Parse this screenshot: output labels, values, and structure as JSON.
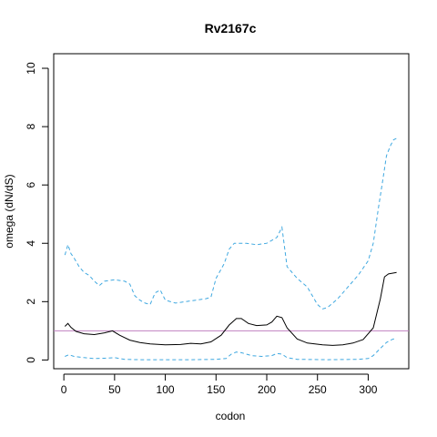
{
  "chart_data": {
    "type": "line",
    "title": "Rv2167c",
    "xlabel": "codon",
    "ylabel": "omega (dN/dS)",
    "xlim": [
      -10,
      340
    ],
    "ylim": [
      -0.3,
      10.5
    ],
    "x_ticks": [
      0,
      50,
      100,
      150,
      200,
      250,
      300
    ],
    "y_ticks": [
      0,
      2,
      4,
      6,
      8,
      10
    ],
    "reference_line": {
      "y": 1,
      "color": "#c080c0"
    },
    "series": [
      {
        "role": "estimate",
        "color": "#000000",
        "dash": "solid",
        "points": [
          [
            1,
            1.15
          ],
          [
            4,
            1.25
          ],
          [
            7,
            1.12
          ],
          [
            12,
            0.98
          ],
          [
            20,
            0.9
          ],
          [
            30,
            0.87
          ],
          [
            40,
            0.93
          ],
          [
            48,
            1.0
          ],
          [
            55,
            0.85
          ],
          [
            65,
            0.68
          ],
          [
            75,
            0.6
          ],
          [
            85,
            0.55
          ],
          [
            100,
            0.52
          ],
          [
            115,
            0.53
          ],
          [
            125,
            0.57
          ],
          [
            135,
            0.55
          ],
          [
            145,
            0.62
          ],
          [
            155,
            0.85
          ],
          [
            163,
            1.2
          ],
          [
            170,
            1.42
          ],
          [
            175,
            1.42
          ],
          [
            182,
            1.25
          ],
          [
            190,
            1.18
          ],
          [
            200,
            1.2
          ],
          [
            205,
            1.3
          ],
          [
            210,
            1.5
          ],
          [
            215,
            1.45
          ],
          [
            220,
            1.1
          ],
          [
            230,
            0.72
          ],
          [
            240,
            0.58
          ],
          [
            255,
            0.52
          ],
          [
            265,
            0.5
          ],
          [
            275,
            0.52
          ],
          [
            285,
            0.58
          ],
          [
            295,
            0.7
          ],
          [
            305,
            1.1
          ],
          [
            312,
            2.1
          ],
          [
            316,
            2.85
          ],
          [
            320,
            2.95
          ],
          [
            325,
            2.98
          ],
          [
            328,
            3.0
          ]
        ]
      },
      {
        "role": "upper",
        "color": "#3fa8e0",
        "dash": "dashed",
        "points": [
          [
            1,
            3.6
          ],
          [
            4,
            3.95
          ],
          [
            7,
            3.65
          ],
          [
            10,
            3.5
          ],
          [
            15,
            3.2
          ],
          [
            20,
            3.0
          ],
          [
            25,
            2.9
          ],
          [
            30,
            2.7
          ],
          [
            35,
            2.55
          ],
          [
            40,
            2.7
          ],
          [
            50,
            2.75
          ],
          [
            60,
            2.7
          ],
          [
            65,
            2.6
          ],
          [
            70,
            2.2
          ],
          [
            75,
            2.05
          ],
          [
            80,
            1.95
          ],
          [
            85,
            1.9
          ],
          [
            90,
            2.3
          ],
          [
            95,
            2.4
          ],
          [
            100,
            2.05
          ],
          [
            110,
            1.95
          ],
          [
            120,
            2.0
          ],
          [
            130,
            2.05
          ],
          [
            140,
            2.1
          ],
          [
            145,
            2.15
          ],
          [
            150,
            2.8
          ],
          [
            158,
            3.3
          ],
          [
            163,
            3.8
          ],
          [
            168,
            4.0
          ],
          [
            180,
            4.0
          ],
          [
            190,
            3.95
          ],
          [
            200,
            4.0
          ],
          [
            210,
            4.2
          ],
          [
            215,
            4.55
          ],
          [
            220,
            3.2
          ],
          [
            230,
            2.8
          ],
          [
            240,
            2.5
          ],
          [
            245,
            2.2
          ],
          [
            250,
            1.9
          ],
          [
            255,
            1.75
          ],
          [
            260,
            1.8
          ],
          [
            270,
            2.1
          ],
          [
            280,
            2.5
          ],
          [
            290,
            2.9
          ],
          [
            300,
            3.4
          ],
          [
            305,
            4.0
          ],
          [
            310,
            5.2
          ],
          [
            315,
            6.3
          ],
          [
            318,
            7.0
          ],
          [
            322,
            7.35
          ],
          [
            325,
            7.55
          ],
          [
            328,
            7.6
          ]
        ]
      },
      {
        "role": "lower",
        "color": "#3fa8e0",
        "dash": "dashed",
        "points": [
          [
            1,
            0.12
          ],
          [
            5,
            0.18
          ],
          [
            10,
            0.12
          ],
          [
            20,
            0.08
          ],
          [
            30,
            0.05
          ],
          [
            40,
            0.06
          ],
          [
            50,
            0.08
          ],
          [
            55,
            0.05
          ],
          [
            60,
            0.02
          ],
          [
            75,
            0.01
          ],
          [
            100,
            0.01
          ],
          [
            125,
            0.01
          ],
          [
            150,
            0.02
          ],
          [
            160,
            0.05
          ],
          [
            165,
            0.2
          ],
          [
            170,
            0.27
          ],
          [
            175,
            0.25
          ],
          [
            185,
            0.15
          ],
          [
            195,
            0.12
          ],
          [
            205,
            0.15
          ],
          [
            210,
            0.22
          ],
          [
            215,
            0.2
          ],
          [
            220,
            0.08
          ],
          [
            230,
            0.02
          ],
          [
            260,
            0.01
          ],
          [
            290,
            0.02
          ],
          [
            300,
            0.05
          ],
          [
            305,
            0.15
          ],
          [
            312,
            0.4
          ],
          [
            318,
            0.6
          ],
          [
            322,
            0.68
          ],
          [
            325,
            0.72
          ],
          [
            328,
            0.68
          ]
        ]
      }
    ]
  }
}
